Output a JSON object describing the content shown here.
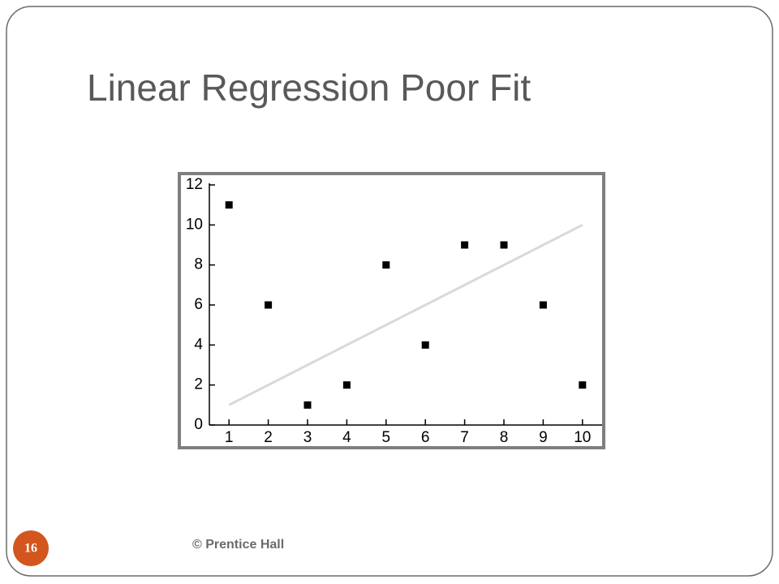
{
  "slide": {
    "footer": "© Prentice Hall",
    "page_number": "16"
  },
  "chart_data": {
    "type": "scatter",
    "title": "Linear Regression Poor Fit",
    "series": [
      {
        "name": null,
        "type": "scatter",
        "color": "#000000",
        "x": [
          1,
          2,
          3,
          4,
          5,
          6,
          7,
          8,
          9,
          10
        ],
        "values": [
          11,
          6,
          1,
          2,
          8,
          4,
          9,
          9,
          6,
          2
        ]
      },
      {
        "name": null,
        "type": "line",
        "color": "#d9d9d9",
        "x": [
          1,
          10
        ],
        "values": [
          1,
          10
        ]
      }
    ],
    "xlim": [
      0.5,
      10.5
    ],
    "xticks": [
      1,
      2,
      3,
      4,
      5,
      6,
      7,
      8,
      9,
      10
    ],
    "ylim": [
      0,
      12
    ],
    "yticks": [
      0,
      2,
      4,
      6,
      8,
      10,
      12
    ]
  }
}
